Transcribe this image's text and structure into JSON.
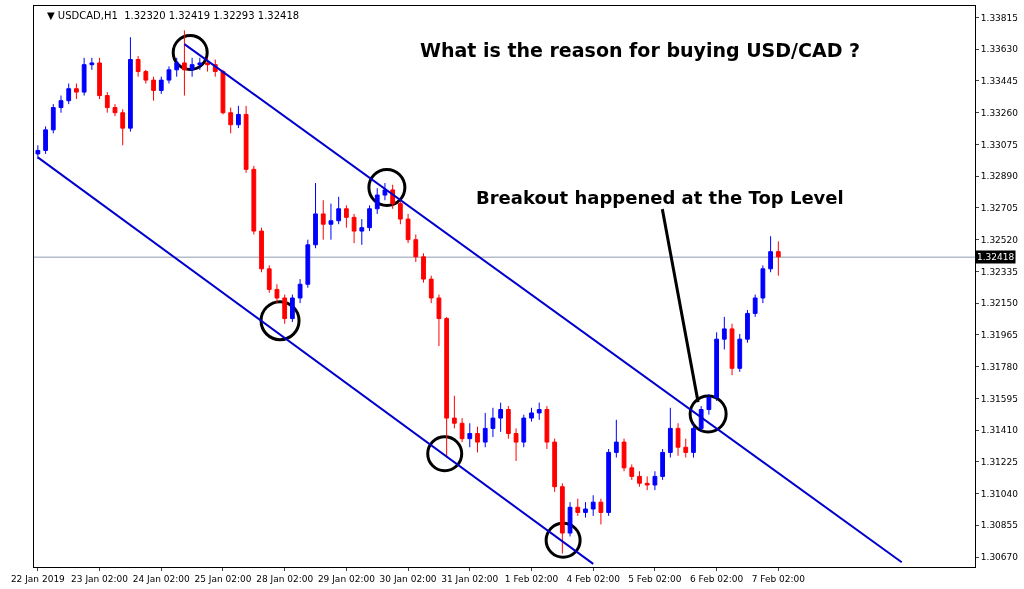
{
  "chart_data": {
    "type": "candlestick",
    "title": "What is the reason for buying USD/CAD ?",
    "annotations": [
      "▼ USDCAD,H1  1.32320 1.32419 1.32293 1.32418",
      "Breakout happened at the Top Level"
    ],
    "categories": [
      "22 Jan 2019",
      null,
      null,
      null,
      null,
      null,
      null,
      null,
      "23 Jan 02:00",
      null,
      null,
      null,
      null,
      null,
      null,
      null,
      "24 Jan 02:00",
      null,
      null,
      null,
      null,
      null,
      null,
      null,
      "25 Jan 02:00",
      null,
      null,
      null,
      null,
      null,
      null,
      null,
      "28 Jan 02:00",
      null,
      null,
      null,
      null,
      null,
      null,
      null,
      "29 Jan 02:00",
      null,
      null,
      null,
      null,
      null,
      null,
      null,
      "30 Jan 02:00",
      null,
      null,
      null,
      null,
      null,
      null,
      null,
      "31 Jan 02:00",
      null,
      null,
      null,
      null,
      null,
      null,
      null,
      "1 Feb 02:00",
      null,
      null,
      null,
      null,
      null,
      null,
      null,
      "4 Feb 02:00",
      null,
      null,
      null,
      null,
      null,
      null,
      null,
      "5 Feb 02:00",
      null,
      null,
      null,
      null,
      null,
      null,
      null,
      "6 Feb 02:00",
      null,
      null,
      null,
      null,
      null,
      null,
      null,
      "7 Feb 02:00",
      null,
      null,
      null,
      null,
      null,
      null,
      null,
      null,
      null,
      null,
      null,
      null,
      null,
      null,
      null,
      null,
      null,
      null,
      null,
      null,
      null,
      null,
      null,
      null,
      null
    ],
    "colors": [
      "#0000ff",
      "#0000ff",
      "#0000ff",
      "#0000ff",
      "#0000ff",
      "#ff0000",
      "#0000ff",
      "#0000ff",
      "#ff0000",
      "#ff0000",
      "#ff0000",
      "#ff0000",
      "#0000ff",
      "#ff0000",
      "#ff0000",
      "#ff0000",
      "#0000ff",
      "#0000ff",
      "#0000ff",
      "#ff0000",
      "#0000ff",
      "#0000ff",
      "#ff0000",
      "#ff0000",
      "#ff0000",
      "#ff0000",
      "#0000ff",
      "#ff0000",
      "#ff0000",
      "#ff0000",
      "#ff0000",
      "#ff0000",
      "#ff0000",
      "#0000ff",
      "#0000ff",
      "#0000ff",
      "#0000ff",
      "#ff0000",
      "#0000ff",
      "#0000ff",
      "#ff0000",
      "#ff0000",
      "#0000ff",
      "#0000ff",
      "#0000ff",
      "#0000ff",
      "#ff0000",
      "#ff0000",
      "#ff0000",
      "#ff0000",
      "#ff0000",
      "#ff0000",
      "#ff0000",
      "#ff0000",
      "#ff0000",
      "#ff0000",
      "#0000ff",
      "#ff0000",
      "#0000ff",
      "#0000ff",
      "#0000ff",
      "#ff0000",
      "#ff0000",
      "#0000ff",
      "#0000ff",
      "#0000ff",
      "#ff0000",
      "#ff0000",
      "#ff0000",
      "#0000ff",
      "#ff0000",
      "#0000ff",
      "#0000ff",
      "#ff0000",
      "#0000ff",
      "#0000ff",
      "#ff0000",
      "#ff0000",
      "#ff0000",
      "#ff0000",
      "#0000ff",
      "#0000ff",
      "#0000ff",
      "#ff0000",
      "#ff0000",
      "#0000ff",
      "#0000ff",
      "#0000ff",
      "#0000ff",
      "#0000ff",
      "#ff0000",
      "#0000ff",
      "#0000ff",
      "#0000ff",
      "#0000ff",
      "#0000ff",
      "#ff0000",
      null,
      null,
      null,
      null,
      null,
      null,
      null,
      null,
      null,
      null,
      null,
      null,
      null,
      null,
      null,
      null,
      null,
      null,
      null,
      null,
      null,
      null,
      null,
      null,
      null
    ],
    "ohlc": [
      [
        1.3302,
        1.3307,
        1.3299,
        1.3304
      ],
      [
        1.3304,
        1.3318,
        1.3302,
        1.3316
      ],
      [
        1.3316,
        1.3331,
        1.3314,
        1.3329
      ],
      [
        1.3329,
        1.3336,
        1.3326,
        1.3333
      ],
      [
        1.3333,
        1.3343,
        1.3331,
        1.334
      ],
      [
        1.334,
        1.3343,
        1.3334,
        1.3338
      ],
      [
        1.3338,
        1.3358,
        1.3336,
        1.3354
      ],
      [
        1.3354,
        1.3358,
        1.3351,
        1.3355
      ],
      [
        1.3355,
        1.3358,
        1.3334,
        1.3336
      ],
      [
        1.3336,
        1.3338,
        1.3326,
        1.3329
      ],
      [
        1.3329,
        1.3331,
        1.3324,
        1.3326
      ],
      [
        1.3326,
        1.3328,
        1.3307,
        1.3317
      ],
      [
        1.3317,
        1.337,
        1.3315,
        1.3357
      ],
      [
        1.3357,
        1.3359,
        1.3347,
        1.335
      ],
      [
        1.335,
        1.3351,
        1.3343,
        1.3345
      ],
      [
        1.3345,
        1.3347,
        1.3333,
        1.3339
      ],
      [
        1.3339,
        1.3347,
        1.3337,
        1.3345
      ],
      [
        1.3345,
        1.3353,
        1.3343,
        1.3351
      ],
      [
        1.3351,
        1.3358,
        1.3347,
        1.3355
      ],
      [
        1.3355,
        1.3374,
        1.3336,
        1.3351
      ],
      [
        1.3351,
        1.3358,
        1.3347,
        1.3354
      ],
      [
        1.3354,
        1.3358,
        1.3351,
        1.3355
      ],
      [
        1.3355,
        1.3358,
        1.335,
        1.3354
      ],
      [
        1.3354,
        1.3357,
        1.3347,
        1.335
      ],
      [
        1.335,
        1.3351,
        1.3325,
        1.3326
      ],
      [
        1.3326,
        1.3329,
        1.3314,
        1.3319
      ],
      [
        1.3319,
        1.333,
        1.3317,
        1.3325
      ],
      [
        1.3325,
        1.333,
        1.3291,
        1.3293
      ],
      [
        1.3293,
        1.3295,
        1.3255,
        1.3257
      ],
      [
        1.3257,
        1.3259,
        1.3233,
        1.3235
      ],
      [
        1.3235,
        1.3237,
        1.3221,
        1.3223
      ],
      [
        1.3223,
        1.3226,
        1.3215,
        1.3218
      ],
      [
        1.3218,
        1.322,
        1.3203,
        1.3206
      ],
      [
        1.3206,
        1.322,
        1.3204,
        1.3218
      ],
      [
        1.3218,
        1.3229,
        1.3215,
        1.3226
      ],
      [
        1.3226,
        1.3252,
        1.3224,
        1.3249
      ],
      [
        1.3249,
        1.3285,
        1.3247,
        1.3267
      ],
      [
        1.3267,
        1.3275,
        1.3252,
        1.3261
      ],
      [
        1.3261,
        1.3273,
        1.3252,
        1.3263
      ],
      [
        1.3263,
        1.3277,
        1.3261,
        1.327
      ],
      [
        1.327,
        1.3272,
        1.3259,
        1.3265
      ],
      [
        1.3265,
        1.3267,
        1.325,
        1.3257
      ],
      [
        1.3257,
        1.3264,
        1.3249,
        1.3259
      ],
      [
        1.3259,
        1.3272,
        1.3257,
        1.327
      ],
      [
        1.327,
        1.3282,
        1.3267,
        1.3278
      ],
      [
        1.3278,
        1.3285,
        1.3275,
        1.3281
      ],
      [
        1.3281,
        1.3284,
        1.327,
        1.3273
      ],
      [
        1.3273,
        1.3275,
        1.3261,
        1.3264
      ],
      [
        1.3264,
        1.3267,
        1.325,
        1.3252
      ],
      [
        1.3252,
        1.3255,
        1.3239,
        1.3242
      ],
      [
        1.3242,
        1.3244,
        1.3227,
        1.3229
      ],
      [
        1.3229,
        1.3231,
        1.3215,
        1.3218
      ],
      [
        1.3218,
        1.322,
        1.319,
        1.3206
      ],
      [
        1.3206,
        1.3207,
        1.3125,
        1.3148
      ],
      [
        1.3148,
        1.3161,
        1.3142,
        1.3145
      ],
      [
        1.3145,
        1.3148,
        1.3134,
        1.3136
      ],
      [
        1.3136,
        1.3145,
        1.3131,
        1.3139
      ],
      [
        1.3139,
        1.3143,
        1.3128,
        1.3134
      ],
      [
        1.3134,
        1.3151,
        1.3131,
        1.3142
      ],
      [
        1.3142,
        1.3154,
        1.3137,
        1.3148
      ],
      [
        1.3148,
        1.3157,
        1.314,
        1.3153
      ],
      [
        1.3153,
        1.3155,
        1.3136,
        1.3139
      ],
      [
        1.3139,
        1.3142,
        1.3123,
        1.3134
      ],
      [
        1.3134,
        1.315,
        1.3131,
        1.3148
      ],
      [
        1.3148,
        1.3154,
        1.3146,
        1.3151
      ],
      [
        1.3151,
        1.3157,
        1.3147,
        1.3153
      ],
      [
        1.3153,
        1.3155,
        1.313,
        1.3134
      ],
      [
        1.3134,
        1.3136,
        1.3105,
        1.3108
      ],
      [
        1.3108,
        1.311,
        1.3069,
        1.3081
      ],
      [
        1.3081,
        1.3099,
        1.3079,
        1.3096
      ],
      [
        1.3096,
        1.3101,
        1.3091,
        1.3093
      ],
      [
        1.3093,
        1.3099,
        1.309,
        1.3095
      ],
      [
        1.3095,
        1.3103,
        1.3091,
        1.3099
      ],
      [
        1.3099,
        1.3101,
        1.3086,
        1.3093
      ],
      [
        1.3093,
        1.313,
        1.3091,
        1.3128
      ],
      [
        1.3128,
        1.3147,
        1.3125,
        1.3134
      ],
      [
        1.3134,
        1.3136,
        1.3117,
        1.3119
      ],
      [
        1.3119,
        1.3121,
        1.3112,
        1.3114
      ],
      [
        1.3114,
        1.3117,
        1.3108,
        1.311
      ],
      [
        1.311,
        1.3114,
        1.3106,
        1.3109
      ],
      [
        1.3109,
        1.3117,
        1.3106,
        1.3114
      ],
      [
        1.3114,
        1.313,
        1.3112,
        1.3128
      ],
      [
        1.3128,
        1.3154,
        1.3125,
        1.3142
      ],
      [
        1.3142,
        1.3145,
        1.3126,
        1.3131
      ],
      [
        1.3131,
        1.3136,
        1.3125,
        1.3128
      ],
      [
        1.3128,
        1.3145,
        1.3125,
        1.3142
      ],
      [
        1.3142,
        1.3155,
        1.314,
        1.3153
      ],
      [
        1.3153,
        1.3162,
        1.315,
        1.316
      ],
      [
        1.316,
        1.3198,
        1.3158,
        1.3194
      ],
      [
        1.3194,
        1.3207,
        1.3188,
        1.32
      ],
      [
        1.32,
        1.3203,
        1.3173,
        1.3177
      ],
      [
        1.3177,
        1.3197,
        1.3175,
        1.3194
      ],
      [
        1.3194,
        1.3211,
        1.3192,
        1.3209
      ],
      [
        1.3209,
        1.322,
        1.3207,
        1.3218
      ],
      [
        1.3218,
        1.3237,
        1.3215,
        1.3235
      ],
      [
        1.3235,
        1.3254,
        1.3233,
        1.3245
      ],
      [
        1.3245,
        1.3251,
        1.3231,
        1.3242
      ],
      null,
      null,
      null,
      null,
      null,
      null,
      null,
      null,
      null,
      null,
      null,
      null,
      null,
      null,
      null,
      null,
      null,
      null,
      null,
      null,
      null,
      null,
      null,
      null,
      null
    ],
    "series": [
      {
        "type": "line",
        "color": "#0000cc",
        "values": [
          null,
          null,
          null,
          null,
          null,
          null,
          null,
          null,
          null,
          null,
          null,
          null,
          null,
          null,
          null,
          null,
          null,
          null,
          null,
          1.3366,
          null,
          null,
          null,
          null,
          null,
          null,
          null,
          null,
          null,
          null,
          null,
          null,
          null,
          null,
          null,
          null,
          null,
          null,
          null,
          null,
          null,
          null,
          null,
          null,
          null,
          null,
          null,
          null,
          null,
          null,
          null,
          null,
          null,
          null,
          null,
          null,
          null,
          null,
          null,
          null,
          null,
          null,
          null,
          null,
          null,
          null,
          null,
          null,
          null,
          null,
          null,
          null,
          null,
          null,
          null,
          null,
          null,
          null,
          null,
          null,
          null,
          null,
          null,
          null,
          null,
          null,
          null,
          null,
          null,
          null,
          null,
          null,
          null,
          null,
          null,
          null,
          null,
          null,
          null,
          null,
          null,
          null,
          null,
          null,
          null,
          null,
          null,
          null,
          null,
          null,
          null,
          null,
          1.3064,
          null,
          null,
          null,
          null,
          null,
          null,
          null,
          null,
          null
        ]
      },
      {
        "type": "line",
        "color": "#0000cc",
        "values": [
          1.33,
          null,
          null,
          null,
          null,
          null,
          null,
          null,
          null,
          null,
          null,
          null,
          null,
          null,
          null,
          null,
          null,
          null,
          null,
          null,
          null,
          null,
          null,
          null,
          null,
          null,
          null,
          null,
          null,
          null,
          null,
          null,
          null,
          null,
          null,
          null,
          null,
          null,
          null,
          null,
          null,
          null,
          null,
          null,
          null,
          null,
          null,
          null,
          null,
          null,
          null,
          null,
          null,
          null,
          null,
          null,
          null,
          null,
          null,
          null,
          null,
          null,
          null,
          null,
          null,
          null,
          null,
          null,
          null,
          null,
          null,
          null,
          1.3063,
          null,
          null,
          null,
          null,
          null,
          null,
          null,
          null,
          null,
          null,
          null,
          null,
          null,
          null,
          null,
          null,
          null,
          null,
          null,
          null,
          null,
          null,
          null,
          null,
          null,
          null,
          null,
          null,
          null,
          null,
          null,
          null,
          null,
          null,
          null,
          null,
          null,
          null,
          null,
          null,
          null,
          null,
          null,
          null,
          null,
          null,
          null,
          null,
          null
        ]
      }
    ],
    "ref_lines": [
      {
        "axis": "y",
        "value": 1.32418,
        "label": "1.32418",
        "color": "#8e9bb0"
      }
    ],
    "ylim": [
      1.30612,
      1.33882
    ],
    "yticks": [
      {
        "value": 1.3067,
        "label": "1.30670"
      },
      {
        "value": 1.30855,
        "label": "1.30855"
      },
      {
        "value": 1.3104,
        "label": "1.31040"
      },
      {
        "value": 1.31225,
        "label": "1.31225"
      },
      {
        "value": 1.3141,
        "label": "1.31410"
      },
      {
        "value": 1.31595,
        "label": "1.31595"
      },
      {
        "value": 1.3178,
        "label": "1.31780"
      },
      {
        "value": 1.31965,
        "label": "1.31965"
      },
      {
        "value": 1.3215,
        "label": "1.32150"
      },
      {
        "value": 1.32335,
        "label": "1.32335"
      },
      {
        "value": 1.3252,
        "label": "1.32520"
      },
      {
        "value": 1.32705,
        "label": "1.32705"
      },
      {
        "value": 1.3289,
        "label": "1.32890"
      },
      {
        "value": 1.33075,
        "label": "1.33075"
      },
      {
        "value": 1.3326,
        "label": "1.33260"
      },
      {
        "value": 1.33445,
        "label": "1.33445"
      },
      {
        "value": 1.3363,
        "label": "1.33630"
      },
      {
        "value": 1.33815,
        "label": "1.33815"
      }
    ],
    "grid": false,
    "line_style": "solid"
  }
}
